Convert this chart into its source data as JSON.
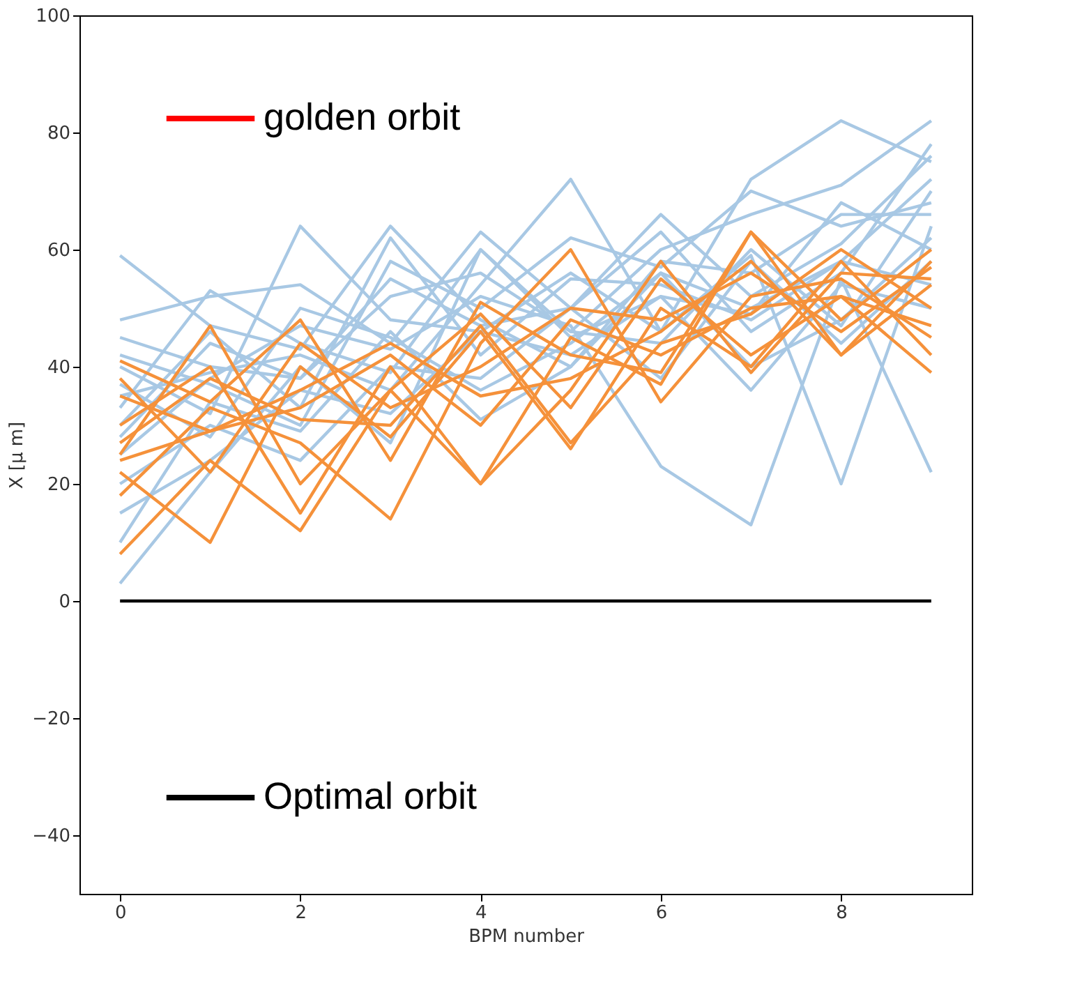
{
  "chart_data": {
    "type": "line",
    "xlabel": "BPM number",
    "ylabel": "X [μ m]",
    "x": [
      0,
      1,
      2,
      3,
      4,
      5,
      6,
      7,
      8,
      9
    ],
    "xlim": [
      -0.45,
      9.45
    ],
    "xticks": [
      0,
      2,
      4,
      6,
      8
    ],
    "ylim": [
      -50,
      100
    ],
    "yticks": [
      -40,
      -20,
      0,
      20,
      40,
      60,
      80,
      100
    ],
    "grid": false,
    "legend": "left",
    "series": [
      {
        "color": "#a8c8e4",
        "values": [
          59,
          47,
          43,
          64,
          48,
          40,
          56,
          40,
          48,
          62
        ]
      },
      {
        "color": "#a8c8e4",
        "values": [
          48,
          52,
          54,
          44,
          63,
          50,
          63,
          46,
          56,
          78
        ]
      },
      {
        "color": "#a8c8e4",
        "values": [
          45,
          40,
          38,
          52,
          56,
          46,
          60,
          66,
          71,
          82
        ]
      },
      {
        "color": "#a8c8e4",
        "values": [
          35,
          39,
          42,
          36,
          54,
          72,
          46,
          72,
          82,
          75
        ]
      },
      {
        "color": "#a8c8e4",
        "values": [
          30,
          46,
          33,
          62,
          42,
          55,
          54,
          48,
          58,
          72
        ]
      },
      {
        "color": "#a8c8e4",
        "values": [
          25,
          38,
          47,
          43,
          52,
          47,
          23,
          13,
          55,
          22
        ]
      },
      {
        "color": "#a8c8e4",
        "values": [
          40,
          32,
          64,
          48,
          46,
          56,
          46,
          59,
          20,
          64
        ]
      },
      {
        "color": "#a8c8e4",
        "values": [
          20,
          30,
          24,
          40,
          38,
          50,
          38,
          58,
          44,
          58
        ]
      },
      {
        "color": "#a8c8e4",
        "values": [
          15,
          24,
          36,
          32,
          46,
          42,
          52,
          36,
          54,
          50
        ]
      },
      {
        "color": "#a8c8e4",
        "values": [
          10,
          34,
          29,
          46,
          31,
          40,
          58,
          56,
          66,
          66
        ]
      },
      {
        "color": "#a8c8e4",
        "values": [
          3,
          22,
          40,
          27,
          60,
          46,
          44,
          60,
          47,
          70
        ]
      },
      {
        "color": "#a8c8e4",
        "values": [
          33,
          53,
          44,
          39,
          60,
          45,
          52,
          49,
          68,
          60
        ]
      },
      {
        "color": "#a8c8e4",
        "values": [
          42,
          37,
          30,
          58,
          50,
          62,
          57,
          70,
          64,
          68
        ]
      },
      {
        "color": "#a8c8e4",
        "values": [
          37,
          28,
          50,
          45,
          36,
          44,
          56,
          50,
          58,
          54
        ]
      },
      {
        "color": "#a8c8e4",
        "values": [
          28,
          44,
          38,
          55,
          47,
          50,
          66,
          52,
          61,
          76
        ]
      },
      {
        "color": "#f5913a",
        "values": [
          8,
          24,
          12,
          36,
          20,
          45,
          37,
          63,
          42,
          58
        ]
      },
      {
        "color": "#f5913a",
        "values": [
          22,
          10,
          40,
          28,
          46,
          26,
          50,
          40,
          58,
          42
        ]
      },
      {
        "color": "#f5913a",
        "values": [
          25,
          47,
          20,
          36,
          49,
          33,
          55,
          42,
          52,
          39
        ]
      },
      {
        "color": "#f5913a",
        "values": [
          41,
          34,
          48,
          24,
          51,
          42,
          39,
          63,
          48,
          60
        ]
      },
      {
        "color": "#f5913a",
        "values": [
          30,
          40,
          15,
          40,
          20,
          36,
          58,
          39,
          56,
          55
        ]
      },
      {
        "color": "#f5913a",
        "values": [
          18,
          33,
          27,
          14,
          44,
          60,
          34,
          52,
          55,
          45
        ]
      },
      {
        "color": "#f5913a",
        "values": [
          35,
          29,
          36,
          44,
          35,
          38,
          46,
          58,
          42,
          54
        ]
      },
      {
        "color": "#f5913a",
        "values": [
          27,
          38,
          31,
          30,
          47,
          27,
          44,
          49,
          60,
          50
        ]
      },
      {
        "color": "#f5913a",
        "values": [
          38,
          22,
          44,
          33,
          40,
          50,
          48,
          56,
          46,
          57
        ]
      },
      {
        "color": "#f5913a",
        "values": [
          24,
          29,
          33,
          42,
          30,
          48,
          42,
          50,
          52,
          47
        ]
      },
      {
        "name": "golden orbit",
        "color": "#ff0000",
        "values": [
          null,
          null,
          null,
          null,
          null,
          null,
          null,
          null,
          null,
          null
        ]
      },
      {
        "name": "Optimal orbit",
        "color": "#000000",
        "values": [
          0,
          0,
          0,
          0,
          0,
          0,
          0,
          0,
          0,
          0
        ]
      }
    ]
  }
}
